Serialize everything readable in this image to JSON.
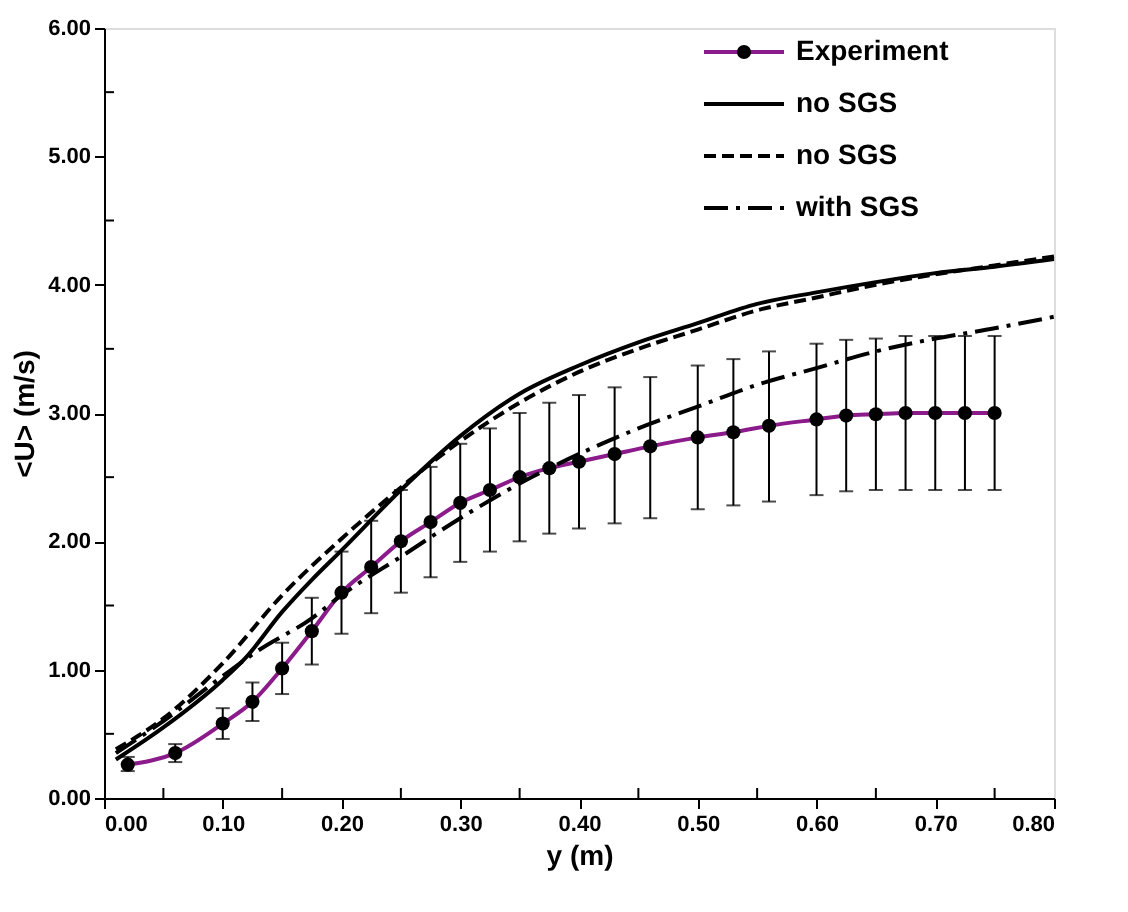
{
  "chart_data": {
    "type": "line",
    "xlabel": "y (m)",
    "ylabel": "<U> (m/s)",
    "xlim": [
      0,
      0.8
    ],
    "ylim": [
      0,
      6
    ],
    "xticks": [
      {
        "value": 0,
        "label": "0.00"
      },
      {
        "value": 0.05,
        "label": null
      },
      {
        "value": 0.1,
        "label": "0.10"
      },
      {
        "value": 0.15,
        "label": null
      },
      {
        "value": 0.2,
        "label": "0.20"
      },
      {
        "value": 0.25,
        "label": null
      },
      {
        "value": 0.3,
        "label": "0.30"
      },
      {
        "value": 0.35,
        "label": null
      },
      {
        "value": 0.4,
        "label": "0.40"
      },
      {
        "value": 0.45,
        "label": null
      },
      {
        "value": 0.5,
        "label": "0.50"
      },
      {
        "value": 0.55,
        "label": null
      },
      {
        "value": 0.6,
        "label": "0.60"
      },
      {
        "value": 0.65,
        "label": null
      },
      {
        "value": 0.7,
        "label": "0.70"
      },
      {
        "value": 0.75,
        "label": null
      },
      {
        "value": 0.8,
        "label": "0.80"
      }
    ],
    "yticks": [
      {
        "value": 0,
        "label": "0.00"
      },
      {
        "value": 0.5,
        "label": null
      },
      {
        "value": 1,
        "label": "1.00"
      },
      {
        "value": 1.5,
        "label": null
      },
      {
        "value": 2,
        "label": "2.00"
      },
      {
        "value": 2.5,
        "label": null
      },
      {
        "value": 3,
        "label": "3.00"
      },
      {
        "value": 3.5,
        "label": null
      },
      {
        "value": 4,
        "label": "4.00"
      },
      {
        "value": 4.5,
        "label": null
      },
      {
        "value": 5,
        "label": "5.00"
      },
      {
        "value": 5.5,
        "label": null
      },
      {
        "value": 6,
        "label": "6.00"
      }
    ],
    "grid": false,
    "legend": "top right",
    "series": [
      {
        "name": "Experiment",
        "color": "#8b1a8b",
        "marker": "circle",
        "line_style": "solid",
        "x": [
          0.02,
          0.06,
          0.1,
          0.125,
          0.15,
          0.175,
          0.2,
          0.225,
          0.25,
          0.275,
          0.3,
          0.325,
          0.35,
          0.375,
          0.4,
          0.43,
          0.46,
          0.5,
          0.53,
          0.56,
          0.6,
          0.625,
          0.65,
          0.675,
          0.7,
          0.725,
          0.75
        ],
        "values": [
          0.26,
          0.35,
          0.58,
          0.75,
          1.01,
          1.3,
          1.6,
          1.8,
          2.0,
          2.15,
          2.3,
          2.4,
          2.5,
          2.57,
          2.62,
          2.68,
          2.74,
          2.81,
          2.85,
          2.9,
          2.95,
          2.98,
          2.99,
          3.0,
          3.0,
          3.0,
          3.0
        ],
        "errors": [
          [
            0.21,
            0.32
          ],
          [
            0.28,
            0.42
          ],
          [
            0.46,
            0.7
          ],
          [
            0.6,
            0.9
          ],
          [
            0.81,
            1.21
          ],
          [
            1.04,
            1.56
          ],
          [
            1.28,
            1.92
          ],
          [
            1.44,
            2.16
          ],
          [
            1.6,
            2.4
          ],
          [
            1.72,
            2.58
          ],
          [
            1.84,
            2.76
          ],
          [
            1.92,
            2.88
          ],
          [
            2.0,
            3.0
          ],
          [
            2.06,
            3.08
          ],
          [
            2.1,
            3.14
          ],
          [
            2.14,
            3.2
          ],
          [
            2.18,
            3.28
          ],
          [
            2.25,
            3.37
          ],
          [
            2.28,
            3.42
          ],
          [
            2.31,
            3.48
          ],
          [
            2.36,
            3.54
          ],
          [
            2.39,
            3.57
          ],
          [
            2.4,
            3.58
          ],
          [
            2.4,
            3.6
          ],
          [
            2.4,
            3.6
          ],
          [
            2.4,
            3.6
          ],
          [
            2.4,
            3.6
          ]
        ]
      },
      {
        "name": "no SGS",
        "color": "#000000",
        "marker": "none",
        "line_style": "solid",
        "x": [
          0.01,
          0.05,
          0.1,
          0.12,
          0.15,
          0.175,
          0.2,
          0.25,
          0.3,
          0.35,
          0.4,
          0.45,
          0.5,
          0.55,
          0.6,
          0.65,
          0.7,
          0.75,
          0.8
        ],
        "values": [
          0.3,
          0.55,
          0.92,
          1.1,
          1.45,
          1.7,
          1.93,
          2.4,
          2.82,
          3.15,
          3.37,
          3.55,
          3.7,
          3.85,
          3.94,
          4.02,
          4.09,
          4.14,
          4.2
        ]
      },
      {
        "name": "no SGS",
        "color": "#000000",
        "marker": "none",
        "line_style": "dashed",
        "x": [
          0.01,
          0.05,
          0.1,
          0.15,
          0.2,
          0.25,
          0.3,
          0.35,
          0.4,
          0.45,
          0.5,
          0.55,
          0.6,
          0.65,
          0.7,
          0.75,
          0.8
        ],
        "values": [
          0.38,
          0.62,
          1.05,
          1.58,
          2.02,
          2.42,
          2.78,
          3.08,
          3.32,
          3.5,
          3.65,
          3.8,
          3.9,
          4.0,
          4.08,
          4.15,
          4.22
        ]
      },
      {
        "name": "with SGS",
        "color": "#000000",
        "marker": "none",
        "line_style": "dashdot",
        "x": [
          0.01,
          0.05,
          0.1,
          0.13,
          0.175,
          0.2,
          0.25,
          0.3,
          0.35,
          0.4,
          0.45,
          0.5,
          0.55,
          0.6,
          0.65,
          0.7,
          0.75,
          0.8
        ],
        "values": [
          0.35,
          0.6,
          0.95,
          1.15,
          1.4,
          1.58,
          1.88,
          2.18,
          2.45,
          2.68,
          2.88,
          3.05,
          3.22,
          3.35,
          3.48,
          3.58,
          3.66,
          3.75
        ]
      }
    ]
  }
}
